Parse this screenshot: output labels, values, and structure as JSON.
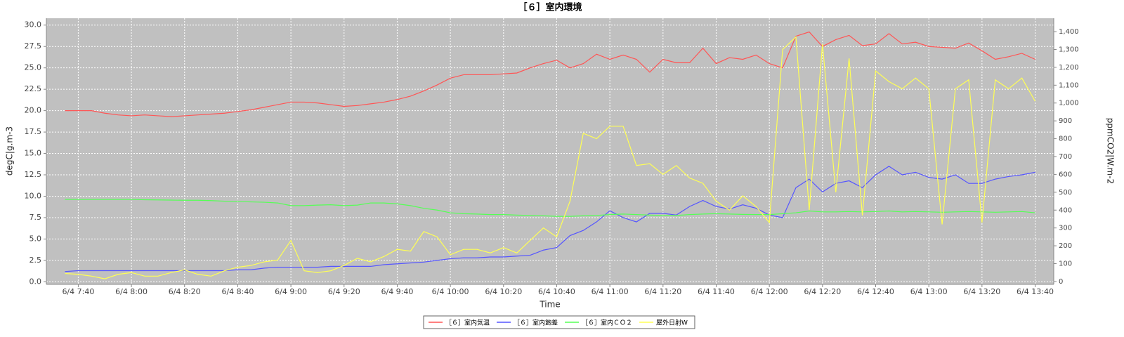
{
  "chart_data": {
    "type": "line",
    "title": "［６］室内環境",
    "x_label": "Time",
    "y_label": "degC|g.m-3",
    "y2_label": "ppmCO2|W.m-2",
    "x": [
      "6/4 7:35",
      "6/4 7:40",
      "6/4 7:45",
      "6/4 7:50",
      "6/4 7:55",
      "6/4 8:00",
      "6/4 8:05",
      "6/4 8:10",
      "6/4 8:15",
      "6/4 8:20",
      "6/4 8:25",
      "6/4 8:30",
      "6/4 8:35",
      "6/4 8:40",
      "6/4 8:45",
      "6/4 8:50",
      "6/4 8:55",
      "6/4 9:00",
      "6/4 9:05",
      "6/4 9:10",
      "6/4 9:15",
      "6/4 9:20",
      "6/4 9:25",
      "6/4 9:30",
      "6/4 9:35",
      "6/4 9:40",
      "6/4 9:45",
      "6/4 9:50",
      "6/4 9:55",
      "6/4 10:00",
      "6/4 10:05",
      "6/4 10:10",
      "6/4 10:15",
      "6/4 10:20",
      "6/4 10:25",
      "6/4 10:30",
      "6/4 10:35",
      "6/4 10:40",
      "6/4 10:45",
      "6/4 10:50",
      "6/4 10:55",
      "6/4 11:00",
      "6/4 11:05",
      "6/4 11:10",
      "6/4 11:15",
      "6/4 11:20",
      "6/4 11:25",
      "6/4 11:30",
      "6/4 11:35",
      "6/4 11:40",
      "6/4 11:45",
      "6/4 11:50",
      "6/4 11:55",
      "6/4 12:00",
      "6/4 12:05",
      "6/4 12:10",
      "6/4 12:15",
      "6/4 12:20",
      "6/4 12:25",
      "6/4 12:30",
      "6/4 12:35",
      "6/4 12:40",
      "6/4 12:45",
      "6/4 12:50",
      "6/4 12:55",
      "6/4 13:00",
      "6/4 13:05",
      "6/4 13:10",
      "6/4 13:15",
      "6/4 13:20",
      "6/4 13:25",
      "6/4 13:30",
      "6/4 13:35",
      "6/4 13:40"
    ],
    "xlim": [
      "6/4 7:28",
      "6/4 13:47"
    ],
    "xticks": [
      "6/4 7:40",
      "6/4 8:00",
      "6/4 8:20",
      "6/4 8:40",
      "6/4 9:00",
      "6/4 9:20",
      "6/4 9:40",
      "6/4 10:00",
      "6/4 10:20",
      "6/4 10:40",
      "6/4 11:00",
      "6/4 11:20",
      "6/4 11:40",
      "6/4 12:00",
      "6/4 12:20",
      "6/4 12:40",
      "6/4 13:00",
      "6/4 13:20",
      "6/4 13:40"
    ],
    "ylim": [
      -0.3,
      30.8
    ],
    "yticks": [
      {
        "value": 0,
        "label": "0.0"
      },
      2.5,
      {
        "value": 5,
        "label": "5.0"
      },
      7.5,
      {
        "value": 10,
        "label": "10.0"
      },
      12.5,
      {
        "value": 15,
        "label": "15.0"
      },
      17.5,
      {
        "value": 20,
        "label": "20.0"
      },
      22.5,
      {
        "value": 25,
        "label": "25.0"
      },
      27.5,
      {
        "value": 30,
        "label": "30.0"
      }
    ],
    "y2lim": [
      -16,
      1475
    ],
    "y2ticks": [
      0,
      100,
      200,
      300,
      400,
      500,
      600,
      700,
      800,
      900,
      {
        "value": 1000,
        "label": "1,000"
      },
      {
        "value": 1100,
        "label": "1,100"
      },
      {
        "value": 1200,
        "label": "1,200"
      },
      {
        "value": 1300,
        "label": "1,300"
      },
      {
        "value": 1400,
        "label": "1,400"
      }
    ],
    "grid": true,
    "series": [
      {
        "name": "［６］室内気温",
        "color": "#ff5555",
        "values": [
          20.0,
          20.0,
          20.0,
          19.7,
          19.5,
          19.4,
          19.5,
          19.4,
          19.3,
          19.4,
          19.5,
          19.6,
          19.7,
          19.9,
          20.1,
          20.4,
          20.7,
          21.0,
          21.0,
          20.9,
          20.7,
          20.5,
          20.6,
          20.8,
          21.0,
          21.3,
          21.7,
          22.3,
          23.0,
          23.8,
          24.2,
          24.2,
          24.2,
          24.3,
          24.4,
          25.0,
          25.5,
          25.9,
          25.0,
          25.5,
          26.6,
          26.0,
          26.5,
          26.0,
          24.5,
          26.0,
          25.6,
          25.6,
          27.3,
          25.5,
          26.2,
          26.0,
          26.5,
          25.5,
          25.0,
          28.7,
          29.2,
          27.5,
          28.3,
          28.8,
          27.6,
          27.8,
          29.0,
          27.8,
          28.0,
          27.5,
          27.4,
          27.3,
          27.9,
          27.0,
          26.0,
          26.3,
          26.7,
          26.0
        ]
      },
      {
        "name": "［６］室内飽差",
        "color": "#5555ff",
        "values": [
          1.2,
          1.3,
          1.3,
          1.3,
          1.3,
          1.3,
          1.3,
          1.3,
          1.3,
          1.3,
          1.3,
          1.3,
          1.3,
          1.4,
          1.4,
          1.6,
          1.7,
          1.7,
          1.7,
          1.7,
          1.8,
          1.8,
          1.8,
          1.8,
          2.0,
          2.1,
          2.2,
          2.3,
          2.5,
          2.7,
          2.8,
          2.8,
          2.9,
          2.9,
          3.0,
          3.1,
          3.7,
          4.0,
          5.4,
          6.0,
          7.0,
          8.3,
          7.5,
          7.0,
          8.0,
          8.0,
          7.8,
          8.8,
          9.5,
          8.8,
          8.5,
          9.0,
          8.6,
          7.8,
          7.5,
          11.0,
          12.0,
          10.5,
          11.5,
          11.8,
          11.0,
          12.5,
          13.5,
          12.5,
          12.8,
          12.2,
          12.0,
          12.5,
          11.5,
          11.5,
          12.0,
          12.3,
          12.5,
          12.8
        ]
      },
      {
        "name": "［６］室内ＣＯ２",
        "color": "#55ff55",
        "axis": "y2",
        "values": [
          460,
          460,
          460,
          460,
          460,
          460,
          458,
          457,
          456,
          455,
          455,
          453,
          450,
          448,
          446,
          444,
          440,
          425,
          425,
          428,
          430,
          425,
          428,
          440,
          440,
          435,
          425,
          410,
          400,
          385,
          380,
          378,
          375,
          375,
          372,
          370,
          368,
          365,
          365,
          368,
          370,
          375,
          378,
          375,
          372,
          370,
          370,
          375,
          378,
          380,
          378,
          376,
          375,
          375,
          380,
          385,
          395,
          390,
          390,
          392,
          390,
          392,
          395,
          390,
          392,
          390,
          388,
          390,
          392,
          390,
          388,
          390,
          392,
          385
        ]
      },
      {
        "name": "屋外日射W",
        "color": "#ffff55",
        "axis": "y2",
        "values": [
          45,
          40,
          30,
          15,
          40,
          50,
          30,
          30,
          50,
          65,
          40,
          30,
          60,
          80,
          90,
          110,
          120,
          230,
          60,
          50,
          60,
          90,
          130,
          110,
          140,
          180,
          170,
          280,
          250,
          150,
          180,
          180,
          160,
          190,
          160,
          230,
          300,
          250,
          450,
          830,
          800,
          870,
          870,
          650,
          660,
          600,
          650,
          580,
          550,
          450,
          400,
          480,
          420,
          330,
          1300,
          1370,
          400,
          1330,
          500,
          1250,
          370,
          1180,
          1120,
          1080,
          1140,
          1080,
          320,
          1080,
          1130,
          330,
          1130,
          1080,
          1140,
          1010
        ]
      }
    ]
  }
}
